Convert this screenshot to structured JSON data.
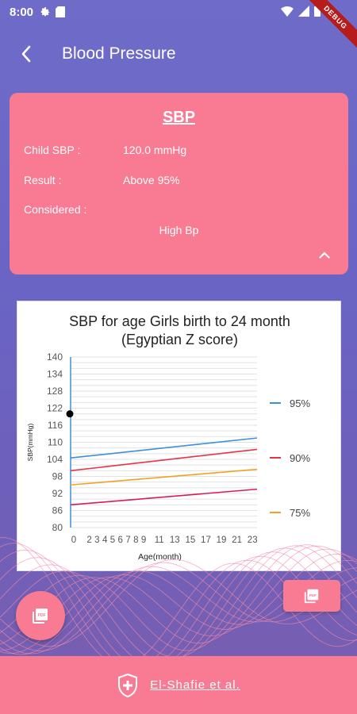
{
  "status_bar": {
    "time": "8:00"
  },
  "debug_banner": "DEBUG",
  "app_bar": {
    "title": "Blood Pressure"
  },
  "result_card": {
    "heading": "SBP",
    "rows": [
      {
        "label": "Child SBP :",
        "value": "120.0 mmHg"
      },
      {
        "label": "Result :",
        "value": "Above 95%"
      },
      {
        "label": "Considered :",
        "value": ""
      }
    ],
    "considered_value": "High Bp"
  },
  "chart_data": {
    "type": "line",
    "title": "SBP for age Girls birth to 24 month (Egyptian Z score)",
    "title_lines": [
      "SBP for age Girls birth to 24 month",
      "(Egyptian Z score)"
    ],
    "xlabel": "Age(month)",
    "ylabel": "SBP(mmHg)",
    "xlim": [
      0,
      24
    ],
    "ylim": [
      80,
      140
    ],
    "x_ticks": [
      0,
      2,
      3,
      4,
      5,
      6,
      7,
      8,
      9,
      11,
      13,
      15,
      17,
      19,
      21,
      23
    ],
    "y_ticks": [
      80,
      86,
      92,
      98,
      104,
      110,
      116,
      122,
      128,
      134,
      140
    ],
    "grid": true,
    "legend_position": "right",
    "series": [
      {
        "name": "95%",
        "color": "#3b8fe0",
        "x": [
          0,
          24
        ],
        "y": [
          104.5,
          111.5
        ]
      },
      {
        "name": "90%",
        "color": "#e8324a",
        "x": [
          0,
          24
        ],
        "y": [
          100,
          107.5
        ]
      },
      {
        "name": "75%",
        "color": "#f5a024",
        "x": [
          0,
          24
        ],
        "y": [
          95,
          100.5
        ]
      },
      {
        "name": "",
        "color": "#d81b60",
        "x": [
          0,
          24
        ],
        "y": [
          88,
          93.5
        ]
      }
    ],
    "point": {
      "x": 0,
      "y": 120,
      "color": "#000000"
    }
  },
  "footer": {
    "text": "El-Shafie et al."
  },
  "colors": {
    "accent": "#f97a93",
    "background": "#6a64c4"
  }
}
